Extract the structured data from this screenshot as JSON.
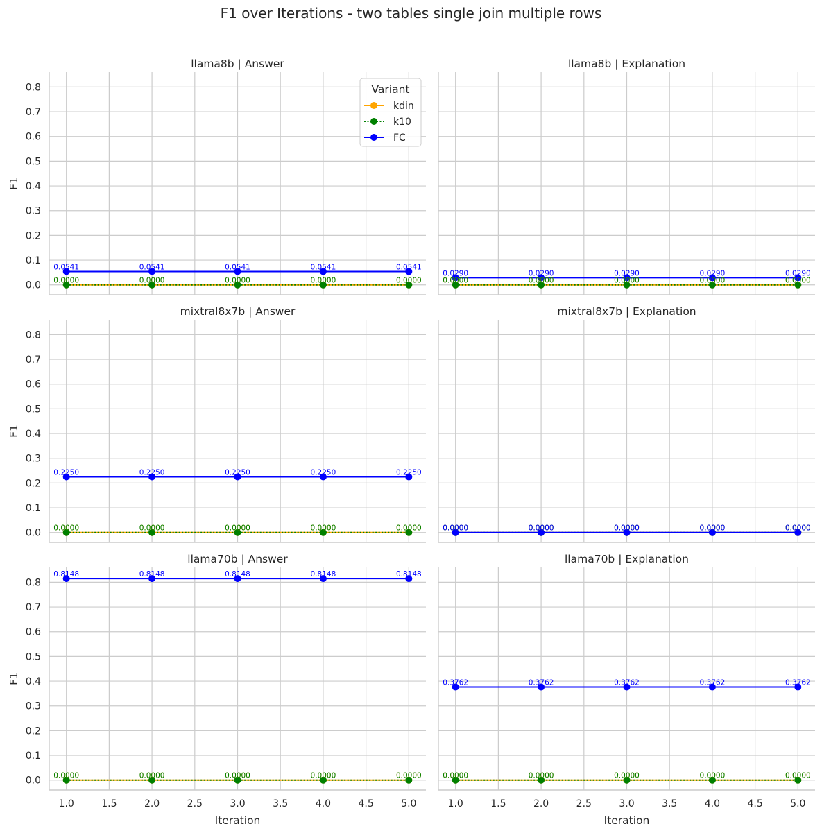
{
  "chart_data": {
    "type": "line",
    "title": "F1 over Iterations - two tables single join multiple rows",
    "xlabel": "Iteration",
    "ylabel": "F1",
    "xlim": [
      0.8,
      5.2
    ],
    "ylim": [
      -0.04,
      0.86
    ],
    "x_ticks": [
      "1.0",
      "1.5",
      "2.0",
      "2.5",
      "3.0",
      "3.5",
      "4.0",
      "4.5",
      "5.0"
    ],
    "y_ticks": [
      "0.0",
      "0.1",
      "0.2",
      "0.3",
      "0.4",
      "0.5",
      "0.6",
      "0.7",
      "0.8"
    ],
    "grid": true,
    "legend": {
      "title": "Variant",
      "placement": "top-right of first panel",
      "entries": [
        {
          "name": "kdin",
          "color": "#ffa500",
          "style": "solid"
        },
        {
          "name": "k10",
          "color": "#008000",
          "style": "dotted"
        },
        {
          "name": "FC",
          "color": "#0000ff",
          "style": "solid"
        }
      ]
    },
    "x": [
      1,
      2,
      3,
      4,
      5
    ],
    "panels": [
      {
        "title": "llama8b | Answer",
        "series": [
          {
            "name": "kdin",
            "values": [
              0,
              0,
              0,
              0,
              0
            ],
            "labels": [
              "0.0000",
              "0.0000",
              "0.0000",
              "0.0000",
              "0.0000"
            ]
          },
          {
            "name": "k10",
            "values": [
              0,
              0,
              0,
              0,
              0
            ],
            "labels": [
              "0.0000",
              "0.0000",
              "0.0000",
              "0.0000",
              "0.0000"
            ]
          },
          {
            "name": "FC",
            "values": [
              0.0541,
              0.0541,
              0.0541,
              0.0541,
              0.0541
            ],
            "labels": [
              "0.0541",
              "0.0541",
              "0.0541",
              "0.0541",
              "0.0541"
            ]
          }
        ]
      },
      {
        "title": "llama8b | Explanation",
        "series": [
          {
            "name": "kdin",
            "values": [
              0,
              0,
              0,
              0,
              0
            ],
            "labels": [
              "0.0000",
              "0.0000",
              "0.0000",
              "0.0000",
              "0.0000"
            ]
          },
          {
            "name": "k10",
            "values": [
              0,
              0,
              0,
              0,
              0
            ],
            "labels": [
              "0.0000",
              "0.0000",
              "0.0000",
              "0.0000",
              "0.0000"
            ]
          },
          {
            "name": "FC",
            "values": [
              0.029,
              0.029,
              0.029,
              0.029,
              0.029
            ],
            "labels": [
              "0.0290",
              "0.0290",
              "0.0290",
              "0.0290",
              "0.0290"
            ]
          }
        ]
      },
      {
        "title": "mixtral8x7b | Answer",
        "series": [
          {
            "name": "kdin",
            "values": [
              0,
              0,
              0,
              0,
              0
            ],
            "labels": [
              "0.0000",
              "0.0000",
              "0.0000",
              "0.0000",
              "0.0000"
            ]
          },
          {
            "name": "k10",
            "values": [
              0,
              0,
              0,
              0,
              0
            ],
            "labels": [
              "0.0000",
              "0.0000",
              "0.0000",
              "0.0000",
              "0.0000"
            ]
          },
          {
            "name": "FC",
            "values": [
              0.225,
              0.225,
              0.225,
              0.225,
              0.225
            ],
            "labels": [
              "0.2250",
              "0.2250",
              "0.2250",
              "0.2250",
              "0.2250"
            ]
          }
        ]
      },
      {
        "title": "mixtral8x7b | Explanation",
        "series": [
          {
            "name": "kdin",
            "values": [
              0,
              0,
              0,
              0,
              0
            ],
            "labels": [
              "0.0000",
              "0.0000",
              "0.0000",
              "0.0000",
              "0.0000"
            ]
          },
          {
            "name": "k10",
            "values": [
              0,
              0,
              0,
              0,
              0
            ],
            "labels": [
              "0.0000",
              "0.0000",
              "0.0000",
              "0.0000",
              "0.0000"
            ]
          },
          {
            "name": "FC",
            "values": [
              0,
              0,
              0,
              0,
              0
            ],
            "labels": [
              "0.0000",
              "0.0000",
              "0.0000",
              "0.0000",
              "0.0000"
            ]
          }
        ]
      },
      {
        "title": "llama70b | Answer",
        "series": [
          {
            "name": "kdin",
            "values": [
              0,
              0,
              0,
              0,
              0
            ],
            "labels": [
              "0.0000",
              "0.0000",
              "0.0000",
              "0.0000",
              "0.0000"
            ]
          },
          {
            "name": "k10",
            "values": [
              0,
              0,
              0,
              0,
              0
            ],
            "labels": [
              "0.0000",
              "0.0000",
              "0.0000",
              "0.0000",
              "0.0000"
            ]
          },
          {
            "name": "FC",
            "values": [
              0.8148,
              0.8148,
              0.8148,
              0.8148,
              0.8148
            ],
            "labels": [
              "0.8148",
              "0.8148",
              "0.8148",
              "0.8148",
              "0.8148"
            ]
          }
        ]
      },
      {
        "title": "llama70b | Explanation",
        "series": [
          {
            "name": "kdin",
            "values": [
              0,
              0,
              0,
              0,
              0
            ],
            "labels": [
              "0.0000",
              "0.0000",
              "0.0000",
              "0.0000",
              "0.0000"
            ]
          },
          {
            "name": "k10",
            "values": [
              0,
              0,
              0,
              0,
              0
            ],
            "labels": [
              "0.0000",
              "0.0000",
              "0.0000",
              "0.0000",
              "0.0000"
            ]
          },
          {
            "name": "FC",
            "values": [
              0.3762,
              0.3762,
              0.3762,
              0.3762,
              0.3762
            ],
            "labels": [
              "0.3762",
              "0.3762",
              "0.3762",
              "0.3762",
              "0.3762"
            ]
          }
        ]
      }
    ]
  }
}
